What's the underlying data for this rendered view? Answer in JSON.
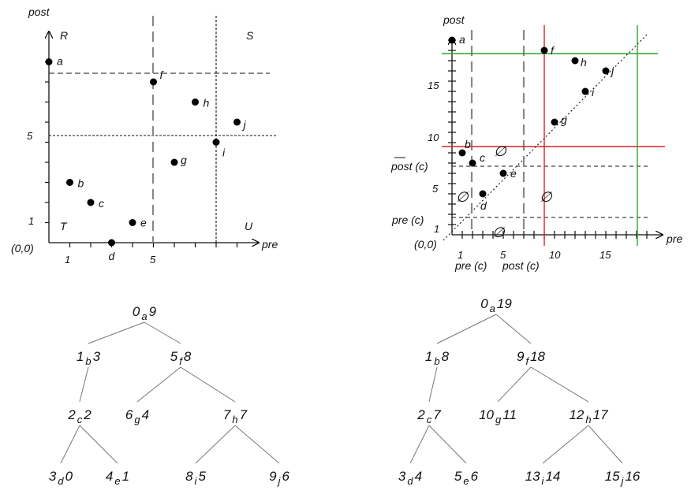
{
  "left_plot": {
    "y_label": "post",
    "x_label": "pre",
    "origin": "(0,0)",
    "regions": {
      "R": "R",
      "S": "S",
      "T": "T",
      "U": "U"
    },
    "x_ticks": [
      "1",
      "5"
    ],
    "y_ticks": [
      "5",
      "1"
    ],
    "points": [
      {
        "name": "a",
        "pre": 0,
        "post": 9
      },
      {
        "name": "b",
        "pre": 1,
        "post": 3
      },
      {
        "name": "c",
        "pre": 2,
        "post": 2
      },
      {
        "name": "d",
        "pre": 3,
        "post": 0
      },
      {
        "name": "e",
        "pre": 4,
        "post": 1
      },
      {
        "name": "f",
        "pre": 5,
        "post": 8
      },
      {
        "name": "g",
        "pre": 6,
        "post": 4
      },
      {
        "name": "h",
        "pre": 7,
        "post": 7
      },
      {
        "name": "i",
        "pre": 8,
        "post": 5
      },
      {
        "name": "j",
        "pre": 9,
        "post": 6
      }
    ]
  },
  "right_plot": {
    "y_label": "post",
    "x_label": "pre",
    "origin": "(0,0)",
    "x_ticks": [
      "1",
      "5",
      "10",
      "15"
    ],
    "y_ticks": [
      "15",
      "10",
      "5",
      "1"
    ],
    "line_labels": {
      "post_bar_c": "post (c)",
      "pre_c_y": "pre (c)",
      "pre_c_x": "pre (c)",
      "post_c_x": "post (c)"
    },
    "empty_symbol": "∅",
    "points": [
      {
        "name": "a",
        "pre": 0,
        "post": 19
      },
      {
        "name": "b",
        "pre": 1,
        "post": 8
      },
      {
        "name": "c",
        "pre": 2,
        "post": 7
      },
      {
        "name": "d",
        "pre": 3,
        "post": 4
      },
      {
        "name": "e",
        "pre": 5,
        "post": 6
      },
      {
        "name": "f",
        "pre": 9,
        "post": 18
      },
      {
        "name": "g",
        "pre": 10,
        "post": 11
      },
      {
        "name": "h",
        "pre": 12,
        "post": 17
      },
      {
        "name": "i",
        "pre": 13,
        "post": 14
      },
      {
        "name": "j",
        "pre": 15,
        "post": 16
      }
    ]
  },
  "tree_left": [
    {
      "name": "a",
      "pre": "0",
      "post": "9"
    },
    {
      "name": "b",
      "pre": "1",
      "post": "3"
    },
    {
      "name": "f",
      "pre": "5",
      "post": "8"
    },
    {
      "name": "c",
      "pre": "2",
      "post": "2"
    },
    {
      "name": "g",
      "pre": "6",
      "post": "4"
    },
    {
      "name": "h",
      "pre": "7",
      "post": "7"
    },
    {
      "name": "d",
      "pre": "3",
      "post": "0"
    },
    {
      "name": "e",
      "pre": "4",
      "post": "1"
    },
    {
      "name": "i",
      "pre": "8",
      "post": "5"
    },
    {
      "name": "j",
      "pre": "9",
      "post": "6"
    }
  ],
  "tree_right": [
    {
      "name": "a",
      "pre": "0",
      "post": "19"
    },
    {
      "name": "b",
      "pre": "1",
      "post": "8"
    },
    {
      "name": "f",
      "pre": "9",
      "post": "18"
    },
    {
      "name": "c",
      "pre": "2",
      "post": "7"
    },
    {
      "name": "g",
      "pre": "10",
      "post": "11"
    },
    {
      "name": "h",
      "pre": "12",
      "post": "17"
    },
    {
      "name": "d",
      "pre": "3",
      "post": "4"
    },
    {
      "name": "e",
      "pre": "5",
      "post": "6"
    },
    {
      "name": "i",
      "pre": "13",
      "post": "14"
    },
    {
      "name": "j",
      "pre": "15",
      "post": "16"
    }
  ]
}
